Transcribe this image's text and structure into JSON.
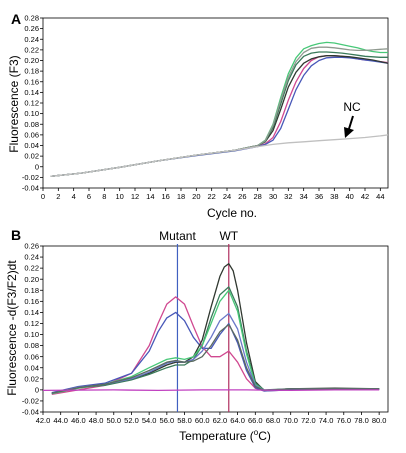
{
  "chart_data": [
    {
      "panel_label": "A",
      "type": "line",
      "xlabel": "Cycle no.",
      "ylabel": "Fluorescence (F3)",
      "xlim": [
        0,
        45
      ],
      "ylim": [
        -0.04,
        0.28
      ],
      "xticks": [
        "0",
        "2",
        "4",
        "6",
        "8",
        "10",
        "12",
        "14",
        "16",
        "18",
        "20",
        "22",
        "24",
        "26",
        "28",
        "30",
        "32",
        "34",
        "36",
        "38",
        "40",
        "42",
        "44"
      ],
      "yticks": [
        "-0.04",
        "-0.02",
        "0",
        "0.02",
        "0.04",
        "0.06",
        "0.08",
        "0.10",
        "0.12",
        "0.14",
        "0.16",
        "0.18",
        "0.20",
        "0.22",
        "0.24",
        "0.26",
        "0.28"
      ],
      "annotations": [
        {
          "text": "NC",
          "x": 41,
          "y": 0.056
        }
      ],
      "series": [
        {
          "color": "#48c878",
          "x": [
            1,
            5,
            10,
            15,
            20,
            25,
            28,
            29,
            30,
            31,
            32,
            33,
            34,
            35,
            36,
            37,
            38,
            39,
            40,
            41,
            42,
            43,
            44,
            45
          ],
          "y": [
            -0.018,
            -0.012,
            -0.001,
            0.011,
            0.022,
            0.031,
            0.04,
            0.05,
            0.08,
            0.13,
            0.175,
            0.205,
            0.222,
            0.228,
            0.232,
            0.234,
            0.233,
            0.23,
            0.227,
            0.224,
            0.22,
            0.217,
            0.215,
            0.215
          ]
        },
        {
          "color": "#d04890",
          "x": [
            1,
            5,
            10,
            15,
            20,
            25,
            28,
            29,
            30,
            31,
            32,
            33,
            34,
            35,
            36,
            37,
            38,
            39,
            40,
            41,
            42,
            43,
            44,
            45
          ],
          "y": [
            -0.018,
            -0.012,
            -0.001,
            0.011,
            0.022,
            0.031,
            0.039,
            0.043,
            0.055,
            0.085,
            0.125,
            0.16,
            0.185,
            0.2,
            0.207,
            0.209,
            0.209,
            0.208,
            0.206,
            0.203,
            0.201,
            0.2,
            0.198,
            0.196
          ]
        },
        {
          "color": "#4858b8",
          "x": [
            1,
            5,
            10,
            15,
            20,
            25,
            28,
            29,
            30,
            31,
            32,
            33,
            34,
            35,
            36,
            37,
            38,
            39,
            40,
            41,
            42,
            43,
            44,
            45
          ],
          "y": [
            -0.018,
            -0.012,
            -0.001,
            0.011,
            0.021,
            0.03,
            0.038,
            0.042,
            0.05,
            0.072,
            0.108,
            0.145,
            0.172,
            0.19,
            0.2,
            0.205,
            0.206,
            0.206,
            0.205,
            0.203,
            0.201,
            0.199,
            0.197,
            0.195
          ]
        },
        {
          "color": "#303830",
          "x": [
            1,
            5,
            10,
            15,
            20,
            25,
            28,
            29,
            30,
            31,
            32,
            33,
            34,
            35,
            36,
            37,
            38,
            39,
            40,
            41,
            42,
            43,
            44,
            45
          ],
          "y": [
            -0.018,
            -0.012,
            -0.001,
            0.011,
            0.022,
            0.031,
            0.04,
            0.047,
            0.068,
            0.108,
            0.15,
            0.178,
            0.195,
            0.203,
            0.207,
            0.209,
            0.209,
            0.208,
            0.207,
            0.205,
            0.203,
            0.201,
            0.198,
            0.195
          ]
        },
        {
          "color": "#3a7a5a",
          "x": [
            1,
            5,
            10,
            15,
            20,
            25,
            28,
            29,
            30,
            31,
            32,
            33,
            34,
            35,
            36,
            37,
            38,
            39,
            40,
            41,
            42,
            43,
            44,
            45
          ],
          "y": [
            -0.018,
            -0.012,
            -0.001,
            0.011,
            0.022,
            0.031,
            0.04,
            0.048,
            0.074,
            0.118,
            0.162,
            0.192,
            0.208,
            0.214,
            0.216,
            0.216,
            0.215,
            0.214,
            0.212,
            0.21,
            0.208,
            0.207,
            0.206,
            0.206
          ]
        },
        {
          "color": "#909a90",
          "x": [
            1,
            5,
            10,
            15,
            20,
            25,
            28,
            29,
            30,
            31,
            32,
            33,
            34,
            35,
            36,
            37,
            38,
            39,
            40,
            41,
            42,
            43,
            44,
            45
          ],
          "y": [
            -0.018,
            -0.012,
            -0.001,
            0.011,
            0.022,
            0.031,
            0.04,
            0.049,
            0.078,
            0.125,
            0.168,
            0.198,
            0.215,
            0.223,
            0.225,
            0.225,
            0.224,
            0.222,
            0.22,
            0.219,
            0.219,
            0.22,
            0.221,
            0.222
          ]
        },
        {
          "color": "#c0c0c0",
          "x": [
            1,
            5,
            10,
            15,
            20,
            25,
            28,
            30,
            32,
            34,
            36,
            38,
            40,
            42,
            44,
            45
          ],
          "y": [
            -0.018,
            -0.012,
            -0.001,
            0.011,
            0.022,
            0.031,
            0.038,
            0.042,
            0.045,
            0.047,
            0.049,
            0.051,
            0.053,
            0.055,
            0.058,
            0.06
          ]
        }
      ]
    },
    {
      "panel_label": "B",
      "type": "line",
      "xlabel": "Temperature (",
      "xlabel_sup": "o",
      "xlabel_tail": "C)",
      "ylabel": "Fluorescence -d(F3/F2)dt",
      "xlim": [
        42,
        81
      ],
      "ylim": [
        -0.04,
        0.26
      ],
      "xticks": [
        "42.0",
        "44.0",
        "46.0",
        "48.0",
        "50.0",
        "52.0",
        "54.0",
        "56.0",
        "58.0",
        "60.0",
        "62.0",
        "64.0",
        "66.0",
        "68.0",
        "70.0",
        "72.0",
        "74.0",
        "76.0",
        "78.0",
        "80.0"
      ],
      "yticks": [
        "-0.04",
        "-0.02",
        "0",
        "0.02",
        "0.04",
        "0.06",
        "0.08",
        "0.10",
        "0.12",
        "0.14",
        "0.16",
        "0.18",
        "0.20",
        "0.22",
        "0.24",
        "0.26"
      ],
      "markers": [
        {
          "text": "Mutant",
          "x": 57.2,
          "color": "#4060c0"
        },
        {
          "text": "WT",
          "x": 63.0,
          "color": "#b03060"
        }
      ],
      "series": [
        {
          "color": "#d04890",
          "x": [
            43,
            46,
            49,
            52,
            54,
            55,
            56,
            57,
            58,
            59,
            60,
            61,
            62,
            63,
            64,
            65,
            66,
            67,
            70,
            75,
            80
          ],
          "y": [
            -0.008,
            0.0,
            0.008,
            0.03,
            0.08,
            0.12,
            0.155,
            0.168,
            0.155,
            0.115,
            0.078,
            0.06,
            0.06,
            0.07,
            0.05,
            0.02,
            0.003,
            -0.002,
            0.0,
            0.002,
            0.001
          ]
        },
        {
          "color": "#4858b8",
          "x": [
            43,
            46,
            49,
            52,
            54,
            55,
            56,
            57,
            58,
            59,
            60,
            61,
            62,
            63,
            64,
            65,
            66,
            67,
            70,
            75,
            80
          ],
          "y": [
            -0.005,
            0.006,
            0.012,
            0.03,
            0.07,
            0.105,
            0.13,
            0.14,
            0.125,
            0.095,
            0.075,
            0.075,
            0.1,
            0.12,
            0.085,
            0.035,
            0.004,
            -0.002,
            0.0,
            0.002,
            0.001
          ]
        },
        {
          "color": "#303830",
          "x": [
            43,
            46,
            49,
            52,
            54,
            56,
            57,
            58,
            59,
            60,
            61,
            62,
            62.5,
            63,
            63.5,
            64,
            65,
            66,
            67,
            70,
            75,
            80
          ],
          "y": [
            -0.006,
            0.005,
            0.01,
            0.02,
            0.03,
            0.045,
            0.05,
            0.05,
            0.06,
            0.09,
            0.15,
            0.205,
            0.222,
            0.228,
            0.215,
            0.18,
            0.085,
            0.015,
            -0.001,
            0.002,
            0.003,
            0.002
          ]
        },
        {
          "color": "#3a7a5a",
          "x": [
            43,
            46,
            49,
            52,
            54,
            56,
            57,
            58,
            59,
            60,
            61,
            62,
            63,
            64,
            65,
            66,
            67,
            70,
            75,
            80
          ],
          "y": [
            -0.006,
            0.004,
            0.008,
            0.018,
            0.028,
            0.04,
            0.045,
            0.045,
            0.055,
            0.08,
            0.13,
            0.172,
            0.186,
            0.15,
            0.07,
            0.012,
            0.0,
            0.002,
            0.002,
            0.002
          ]
        },
        {
          "color": "#48c878",
          "x": [
            43,
            46,
            49,
            52,
            54,
            56,
            57,
            58,
            59,
            60,
            61,
            62,
            63,
            64,
            65,
            66,
            67,
            70,
            75,
            80
          ],
          "y": [
            -0.007,
            0.003,
            0.01,
            0.024,
            0.04,
            0.055,
            0.058,
            0.055,
            0.06,
            0.08,
            0.12,
            0.16,
            0.18,
            0.142,
            0.065,
            0.01,
            -0.001,
            0.002,
            0.002,
            0.002
          ]
        },
        {
          "color": "#6a78c8",
          "x": [
            43,
            46,
            49,
            52,
            54,
            56,
            57,
            58,
            59,
            60,
            61,
            62,
            63,
            64,
            65,
            66,
            67,
            70,
            75,
            80
          ],
          "y": [
            -0.006,
            0.005,
            0.01,
            0.02,
            0.032,
            0.048,
            0.052,
            0.05,
            0.055,
            0.07,
            0.095,
            0.125,
            0.138,
            0.11,
            0.05,
            0.008,
            -0.001,
            0.002,
            0.002,
            0.002
          ]
        },
        {
          "color": "#5a6a60",
          "x": [
            43,
            46,
            49,
            52,
            54,
            56,
            57,
            58,
            59,
            60,
            61,
            62,
            63,
            64,
            65,
            66,
            67,
            70,
            75,
            80
          ],
          "y": [
            -0.006,
            0.004,
            0.01,
            0.022,
            0.035,
            0.05,
            0.053,
            0.05,
            0.052,
            0.06,
            0.08,
            0.105,
            0.118,
            0.09,
            0.04,
            0.006,
            -0.001,
            0.002,
            0.002,
            0.002
          ]
        },
        {
          "color": "#c040c0",
          "x": [
            42,
            50,
            55,
            60,
            65,
            70,
            75,
            80
          ],
          "y": [
            -0.001,
            0.0,
            -0.001,
            0.0,
            0.0,
            -0.001,
            0.0,
            0.0
          ]
        }
      ]
    }
  ]
}
